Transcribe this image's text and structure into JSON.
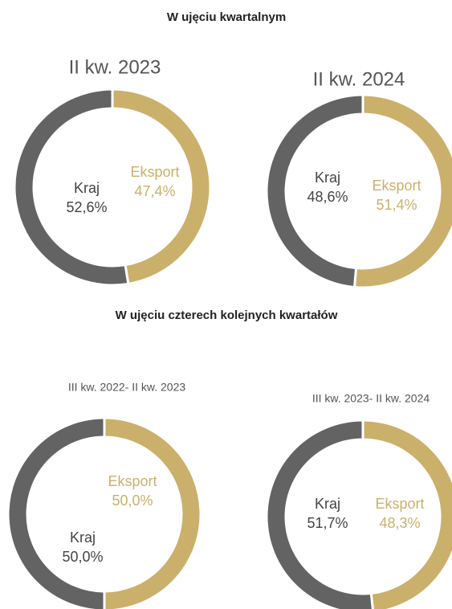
{
  "headings": [
    "W ujęciu kwartalnym",
    "W ujęciu czterech kolejnych kwartałów"
  ],
  "chart_data": [
    {
      "type": "donut",
      "title": "II kw. 2023",
      "categories": [
        "Eksport",
        "Kraj"
      ],
      "values": [
        47.4,
        52.6
      ],
      "value_labels": [
        "47,4%",
        "52,6%"
      ],
      "colors": [
        "#cbb06b",
        "#636363"
      ]
    },
    {
      "type": "donut",
      "title": "II kw. 2024",
      "categories": [
        "Eksport",
        "Kraj"
      ],
      "values": [
        51.4,
        48.6
      ],
      "value_labels": [
        "51,4%",
        "48,6%"
      ],
      "colors": [
        "#cbb06b",
        "#636363"
      ]
    },
    {
      "type": "donut",
      "title": "III kw. 2022- II kw. 2023",
      "categories": [
        "Eksport",
        "Kraj"
      ],
      "values": [
        50.0,
        50.0
      ],
      "value_labels": [
        "50,0%",
        "50,0%"
      ],
      "colors": [
        "#cbb06b",
        "#636363"
      ]
    },
    {
      "type": "donut",
      "title": "III kw. 2023- II kw. 2024",
      "categories": [
        "Eksport",
        "Kraj"
      ],
      "values": [
        48.3,
        51.7
      ],
      "value_labels": [
        "48,3%",
        "51,7%"
      ],
      "colors": [
        "#cbb06b",
        "#636363"
      ]
    }
  ]
}
